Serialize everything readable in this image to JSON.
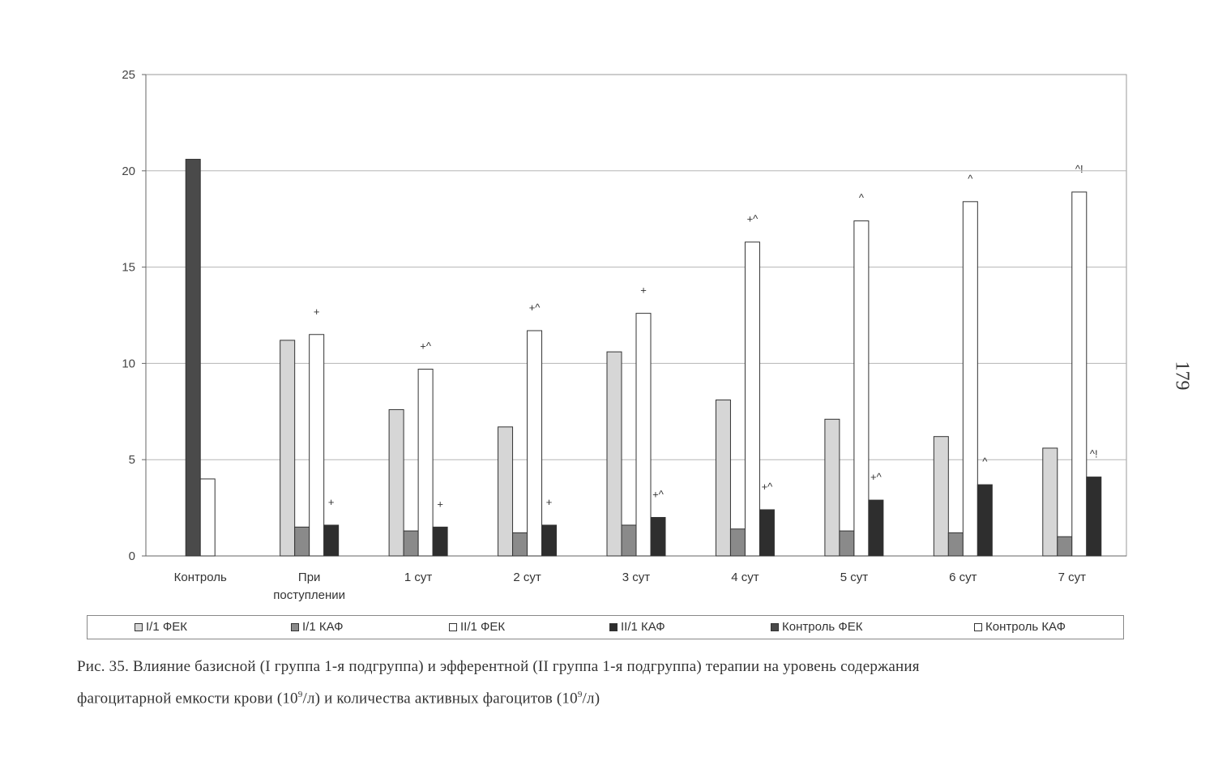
{
  "page_number": "179",
  "caption": {
    "line1": "Рис. 35. Влияние базисной (I группа 1-я подгруппа) и эфферентной (II группа 1-я подгруппа) терапии на уровень содержания",
    "line2_part1": "фагоцитарной емкости крови (10",
    "line2_sup1": "9",
    "line2_part2": "/л) и количества активных фагоцитов (10",
    "line2_sup2": "9",
    "line2_part3": "/л)"
  },
  "chart_data": {
    "type": "bar",
    "ylim": [
      0,
      25
    ],
    "yticks": [
      "0",
      "5",
      "10",
      "15",
      "20",
      "25"
    ],
    "grid": true,
    "legend_position": "bottom",
    "categories": [
      "Контроль",
      "При поступлении",
      "1 сут",
      "2 сут",
      "3 сут",
      "4 сут",
      "5 сут",
      "6 сут",
      "7 сут"
    ],
    "category_labels": [
      [
        "Контроль"
      ],
      [
        "При",
        "поступлении"
      ],
      [
        "1 сут"
      ],
      [
        "2 сут"
      ],
      [
        "3 сут"
      ],
      [
        "4 сут"
      ],
      [
        "5 сут"
      ],
      [
        "6 сут"
      ],
      [
        "7 сут"
      ]
    ],
    "series": [
      {
        "name": "I/1 ФЕК",
        "color": "#d6d6d6",
        "values": [
          null,
          11.2,
          7.6,
          6.7,
          10.6,
          8.1,
          7.1,
          6.2,
          5.6
        ]
      },
      {
        "name": "I/1 КАФ",
        "color": "#8a8a8a",
        "values": [
          null,
          1.5,
          1.3,
          1.2,
          1.6,
          1.4,
          1.3,
          1.2,
          1.0
        ]
      },
      {
        "name": "II/1 ФЕК",
        "color": "#ffffff",
        "values": [
          null,
          11.5,
          9.7,
          11.7,
          12.6,
          16.3,
          17.4,
          18.4,
          18.9
        ]
      },
      {
        "name": "II/1 КАФ",
        "color": "#2e2e2e",
        "values": [
          null,
          1.6,
          1.5,
          1.6,
          2.0,
          2.4,
          2.9,
          3.7,
          4.1
        ]
      },
      {
        "name": "Контроль ФЕК",
        "color": "#4a4a4a",
        "values": [
          20.6,
          null,
          null,
          null,
          null,
          null,
          null,
          null,
          null
        ]
      },
      {
        "name": "Контроль КАФ",
        "color": "#ffffff",
        "values": [
          4.0,
          null,
          null,
          null,
          null,
          null,
          null,
          null,
          null
        ]
      }
    ],
    "annotations": [
      {
        "category": "При поступлении",
        "series": "II/1 ФЕК",
        "text": "+"
      },
      {
        "category": "При поступлении",
        "series": "II/1 КАФ",
        "text": "+"
      },
      {
        "category": "1 сут",
        "series": "II/1 ФЕК",
        "text": "+^"
      },
      {
        "category": "1 сут",
        "series": "II/1 КАФ",
        "text": "+"
      },
      {
        "category": "2 сут",
        "series": "II/1 ФЕК",
        "text": "+^"
      },
      {
        "category": "2 сут",
        "series": "II/1 КАФ",
        "text": "+"
      },
      {
        "category": "3 сут",
        "series": "II/1 ФЕК",
        "text": "+"
      },
      {
        "category": "3 сут",
        "series": "II/1 КАФ",
        "text": "+^"
      },
      {
        "category": "4 сут",
        "series": "II/1 ФЕК",
        "text": "+^"
      },
      {
        "category": "4 сут",
        "series": "II/1 КАФ",
        "text": "+^"
      },
      {
        "category": "5 сут",
        "series": "II/1 ФЕК",
        "text": "^"
      },
      {
        "category": "5 сут",
        "series": "II/1 КАФ",
        "text": "+^"
      },
      {
        "category": "6 сут",
        "series": "II/1 ФЕК",
        "text": "^"
      },
      {
        "category": "6 сут",
        "series": "II/1 КАФ",
        "text": "^"
      },
      {
        "category": "7 сут",
        "series": "II/1 ФЕК",
        "text": "^!"
      },
      {
        "category": "7 сут",
        "series": "II/1 КАФ",
        "text": "^!"
      }
    ]
  }
}
